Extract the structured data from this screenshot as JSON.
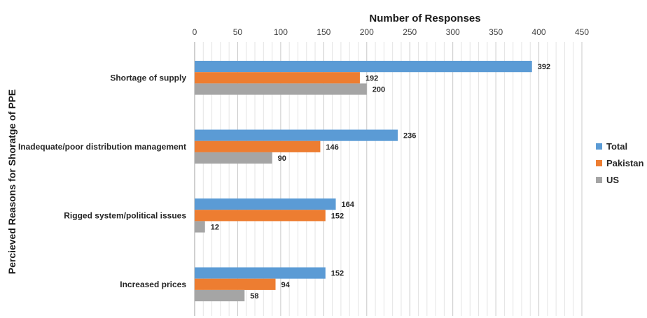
{
  "chart_data": {
    "type": "bar",
    "orientation": "horizontal",
    "title": "Number of Responses",
    "xlabel": "Number of Responses",
    "ylabel": "Percieved Reasons for Shoratge of PPE",
    "xlim": [
      0,
      450
    ],
    "x_ticks": [
      0,
      50,
      100,
      150,
      200,
      250,
      300,
      350,
      400,
      450
    ],
    "x_axis_position": "top",
    "grid": true,
    "legend_position": "right",
    "categories": [
      "Shortage of supply",
      "Inadequate/poor distribution management",
      "Rigged system/political issues",
      "Increased prices"
    ],
    "series": [
      {
        "name": "Total",
        "color": "#5b9bd5",
        "values": [
          392,
          236,
          164,
          152
        ]
      },
      {
        "name": "Pakistan",
        "color": "#ed7d31",
        "values": [
          192,
          146,
          152,
          94
        ]
      },
      {
        "name": "US",
        "color": "#a5a5a5",
        "values": [
          200,
          90,
          12,
          58
        ]
      }
    ]
  }
}
